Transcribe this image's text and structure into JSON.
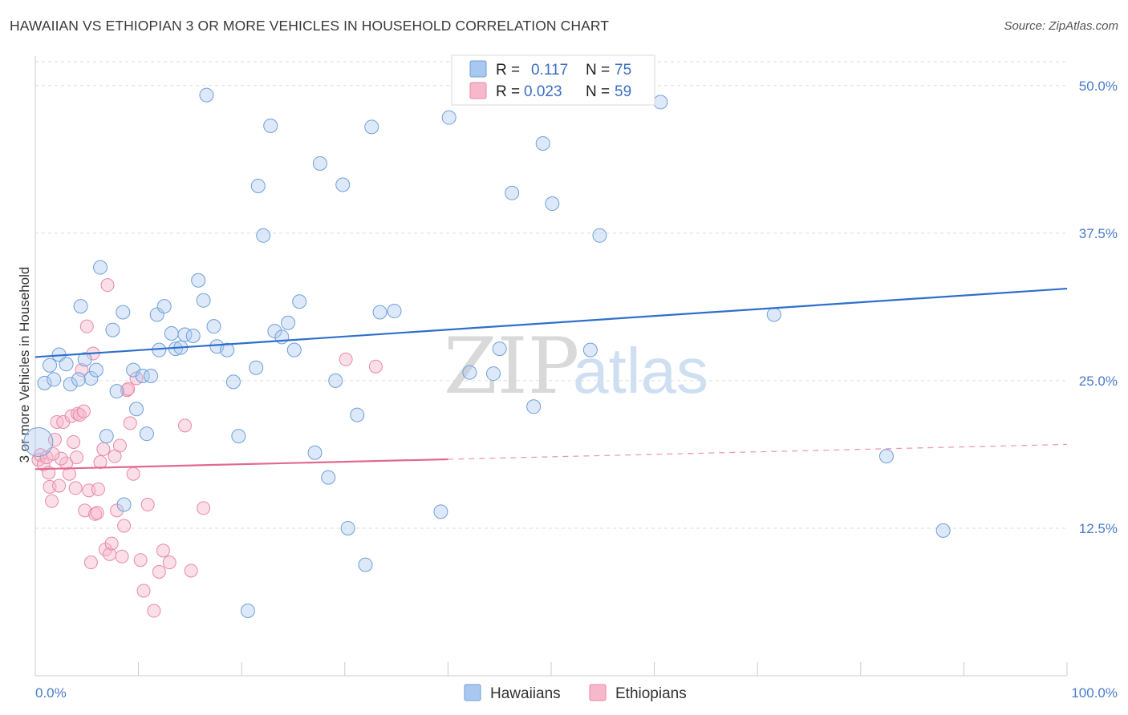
{
  "header": {
    "title": "HAWAIIAN VS ETHIOPIAN 3 OR MORE VEHICLES IN HOUSEHOLD CORRELATION CHART",
    "source": "Source: ZipAtlas.com"
  },
  "watermark": {
    "zip": "ZIP",
    "atlas": "atlas"
  },
  "colors": {
    "hawaiians_fill": "#a9c8f0",
    "hawaiians_stroke": "#6f9fd8",
    "hawaiians_line": "#2f6fcc",
    "ethiopians_fill": "#f7b8cb",
    "ethiopians_stroke": "#e889a6",
    "ethiopians_line": "#e06a92",
    "tick_text": "#4a7cc7"
  },
  "legend": {
    "rows": [
      {
        "r_label": "R =",
        "r_value": "0.117",
        "n_label": "N =",
        "n_value": "75"
      },
      {
        "r_label": "R =",
        "r_value": "0.023",
        "n_label": "N =",
        "n_value": "59"
      }
    ]
  },
  "chart_data": {
    "type": "scatter",
    "title": "HAWAIIAN VS ETHIOPIAN 3 OR MORE VEHICLES IN HOUSEHOLD CORRELATION CHART",
    "xlabel": "",
    "ylabel": "3 or more Vehicles in Household",
    "xlim": [
      0,
      100
    ],
    "ylim": [
      0,
      52.5
    ],
    "x_tick_labels": [
      {
        "value": 0,
        "label": "0.0%"
      },
      {
        "value": 100,
        "label": "100.0%"
      }
    ],
    "y_tick_labels": [
      {
        "value": 12.5,
        "label": "12.5%"
      },
      {
        "value": 25.0,
        "label": "25.0%"
      },
      {
        "value": 37.5,
        "label": "37.5%"
      },
      {
        "value": 50.0,
        "label": "50.0%"
      }
    ],
    "grid": "horizontal dashed",
    "legend_position": "top-center",
    "series": [
      {
        "name": "Hawaiians",
        "r": 0.117,
        "n": 75,
        "trend": {
          "x": [
            0,
            100
          ],
          "y": [
            27.0,
            32.8
          ],
          "dashed_from": null
        },
        "points": [
          [
            0.3,
            19.8
          ],
          [
            0.9,
            24.8
          ],
          [
            1.4,
            26.3
          ],
          [
            1.8,
            25.1
          ],
          [
            2.3,
            27.2
          ],
          [
            3.0,
            26.4
          ],
          [
            3.4,
            24.7
          ],
          [
            4.2,
            25.1
          ],
          [
            4.4,
            31.3
          ],
          [
            4.8,
            26.8
          ],
          [
            5.4,
            25.2
          ],
          [
            5.9,
            25.9
          ],
          [
            6.3,
            34.6
          ],
          [
            6.9,
            20.3
          ],
          [
            7.5,
            29.3
          ],
          [
            7.9,
            24.1
          ],
          [
            8.5,
            30.8
          ],
          [
            8.6,
            14.5
          ],
          [
            9.5,
            25.9
          ],
          [
            9.8,
            22.6
          ],
          [
            10.4,
            25.4
          ],
          [
            10.8,
            20.5
          ],
          [
            11.2,
            25.4
          ],
          [
            11.8,
            30.6
          ],
          [
            12.0,
            27.6
          ],
          [
            12.5,
            31.3
          ],
          [
            13.2,
            29.0
          ],
          [
            13.6,
            27.7
          ],
          [
            14.1,
            27.8
          ],
          [
            14.5,
            28.9
          ],
          [
            15.3,
            28.8
          ],
          [
            15.8,
            33.5
          ],
          [
            16.3,
            31.8
          ],
          [
            16.6,
            49.2
          ],
          [
            17.3,
            29.6
          ],
          [
            17.6,
            27.9
          ],
          [
            18.6,
            27.6
          ],
          [
            19.2,
            24.9
          ],
          [
            19.7,
            20.3
          ],
          [
            20.6,
            5.5
          ],
          [
            21.4,
            26.1
          ],
          [
            21.6,
            41.5
          ],
          [
            22.1,
            37.3
          ],
          [
            22.8,
            46.6
          ],
          [
            23.2,
            29.2
          ],
          [
            23.9,
            28.7
          ],
          [
            24.5,
            29.9
          ],
          [
            25.1,
            27.6
          ],
          [
            25.6,
            31.7
          ],
          [
            27.1,
            18.9
          ],
          [
            27.6,
            43.4
          ],
          [
            28.4,
            16.8
          ],
          [
            29.1,
            25.0
          ],
          [
            29.8,
            41.6
          ],
          [
            30.3,
            12.5
          ],
          [
            31.2,
            22.1
          ],
          [
            32.0,
            9.4
          ],
          [
            32.6,
            46.5
          ],
          [
            33.4,
            30.8
          ],
          [
            34.8,
            30.9
          ],
          [
            39.3,
            13.9
          ],
          [
            40.1,
            47.3
          ],
          [
            42.1,
            25.7
          ],
          [
            44.4,
            25.6
          ],
          [
            45.0,
            27.7
          ],
          [
            46.2,
            40.9
          ],
          [
            48.3,
            22.8
          ],
          [
            49.2,
            45.1
          ],
          [
            50.1,
            40.0
          ],
          [
            53.8,
            27.6
          ],
          [
            54.7,
            37.3
          ],
          [
            60.6,
            48.6
          ],
          [
            71.6,
            30.6
          ],
          [
            82.5,
            18.6
          ],
          [
            88.0,
            12.3
          ]
        ]
      },
      {
        "name": "Ethiopians",
        "r": 0.023,
        "n": 59,
        "trend": {
          "x": [
            0,
            100
          ],
          "y": [
            17.5,
            19.6
          ],
          "dashed_from": 40
        },
        "points": [
          [
            0.3,
            18.3
          ],
          [
            0.5,
            18.7
          ],
          [
            0.8,
            17.9
          ],
          [
            1.1,
            18.5
          ],
          [
            1.3,
            17.2
          ],
          [
            1.4,
            16.0
          ],
          [
            1.6,
            14.8
          ],
          [
            1.9,
            20.0
          ],
          [
            2.1,
            21.5
          ],
          [
            2.3,
            16.1
          ],
          [
            2.7,
            21.5
          ],
          [
            3.0,
            18.0
          ],
          [
            3.3,
            17.1
          ],
          [
            3.5,
            22.0
          ],
          [
            3.7,
            19.8
          ],
          [
            4.0,
            18.5
          ],
          [
            4.1,
            22.2
          ],
          [
            4.3,
            22.1
          ],
          [
            4.5,
            25.9
          ],
          [
            4.7,
            22.4
          ],
          [
            4.8,
            14.0
          ],
          [
            5.0,
            29.6
          ],
          [
            5.2,
            15.7
          ],
          [
            5.4,
            9.6
          ],
          [
            5.6,
            27.3
          ],
          [
            5.8,
            13.7
          ],
          [
            6.1,
            15.8
          ],
          [
            6.3,
            18.1
          ],
          [
            6.6,
            19.2
          ],
          [
            6.8,
            10.7
          ],
          [
            7.0,
            33.1
          ],
          [
            7.2,
            10.3
          ],
          [
            7.4,
            11.2
          ],
          [
            7.7,
            18.6
          ],
          [
            7.9,
            14.0
          ],
          [
            8.2,
            19.5
          ],
          [
            8.4,
            10.1
          ],
          [
            8.6,
            12.7
          ],
          [
            8.9,
            24.2
          ],
          [
            9.2,
            21.4
          ],
          [
            9.5,
            17.1
          ],
          [
            9.8,
            25.2
          ],
          [
            10.2,
            9.8
          ],
          [
            10.5,
            7.2
          ],
          [
            10.9,
            14.5
          ],
          [
            11.5,
            5.5
          ],
          [
            12.0,
            8.8
          ],
          [
            12.4,
            10.6
          ],
          [
            13.0,
            9.6
          ],
          [
            14.5,
            21.2
          ],
          [
            15.1,
            8.9
          ],
          [
            16.3,
            14.2
          ],
          [
            30.1,
            26.8
          ],
          [
            33.0,
            26.2
          ],
          [
            2.5,
            18.4
          ],
          [
            1.7,
            18.8
          ],
          [
            6.0,
            13.8
          ],
          [
            9.0,
            24.3
          ],
          [
            3.9,
            15.9
          ]
        ]
      }
    ]
  },
  "bottom_legend": {
    "items": [
      {
        "label": "Hawaiians"
      },
      {
        "label": "Ethiopians"
      }
    ]
  }
}
